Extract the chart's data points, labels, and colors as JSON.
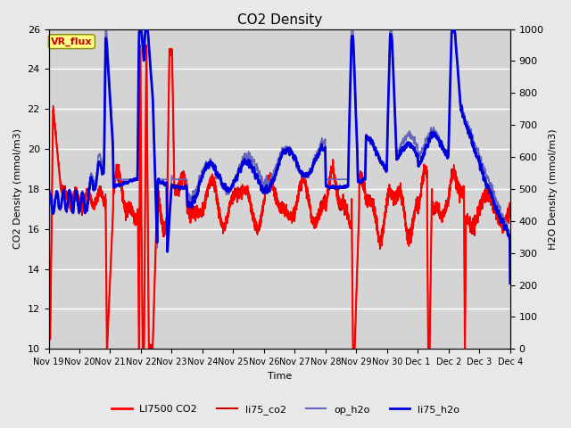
{
  "title": "CO2 Density",
  "xlabel": "Time",
  "ylabel_left": "CO2 Density (mmol/m3)",
  "ylabel_right": "H2O Density (mmol/m3)",
  "ylim_left": [
    10,
    26
  ],
  "ylim_right": [
    0,
    1000
  ],
  "yticks_left": [
    10,
    12,
    14,
    16,
    18,
    20,
    22,
    24,
    26
  ],
  "yticks_right": [
    0,
    100,
    200,
    300,
    400,
    500,
    600,
    700,
    800,
    900,
    1000
  ],
  "xtick_labels": [
    "Nov 19",
    "Nov 20",
    "Nov 21",
    "Nov 22",
    "Nov 23",
    "Nov 24",
    "Nov 25",
    "Nov 26",
    "Nov 27",
    "Nov 28",
    "Nov 29",
    "Nov 30",
    "Dec 1",
    "Dec 2",
    "Dec 3",
    "Dec 4"
  ],
  "legend_entries": [
    "LI7500 CO2",
    "li75_co2",
    "op_h2o",
    "li75_h2o"
  ],
  "color_li7500": "#ff0000",
  "color_li75_co2": "#cc0000",
  "color_op_h2o": "#6666bb",
  "color_li75_h2o": "#0000dd",
  "lw_li7500": 1.5,
  "lw_li75_co2": 1.0,
  "lw_op_h2o": 1.2,
  "lw_li75_h2o": 2.0,
  "vr_flux_label": "VR_flux",
  "fig_facecolor": "#e8e8e8",
  "ax_facecolor": "#d4d4d4",
  "grid_color": "#ffffff"
}
